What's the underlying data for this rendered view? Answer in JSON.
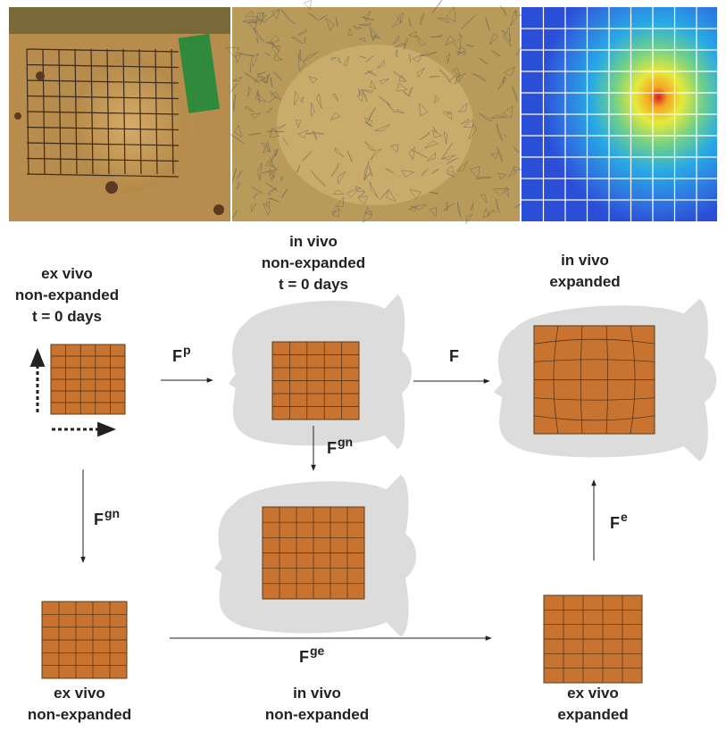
{
  "states": [
    {
      "lines": [
        "ex vivo",
        "non-expanded",
        "t = 0 days"
      ]
    },
    {
      "lines": [
        "in vivo",
        "non-expanded",
        "t = 0 days"
      ]
    },
    {
      "lines": [
        "in vivo",
        "expanded"
      ]
    },
    {
      "lines": [
        "ex vivo",
        "non-expanded"
      ]
    },
    {
      "lines": [
        "in vivo",
        "non-expanded"
      ]
    },
    {
      "lines": [
        "ex vivo",
        "expanded"
      ]
    }
  ],
  "arrows": [
    {
      "base": "F",
      "sup": "p"
    },
    {
      "base": "F",
      "sup": ""
    },
    {
      "base": "F",
      "sup": "gn"
    },
    {
      "base": "F",
      "sup": "gn"
    },
    {
      "base": "F",
      "sup": "ge"
    },
    {
      "base": "F",
      "sup": "e"
    }
  ]
}
